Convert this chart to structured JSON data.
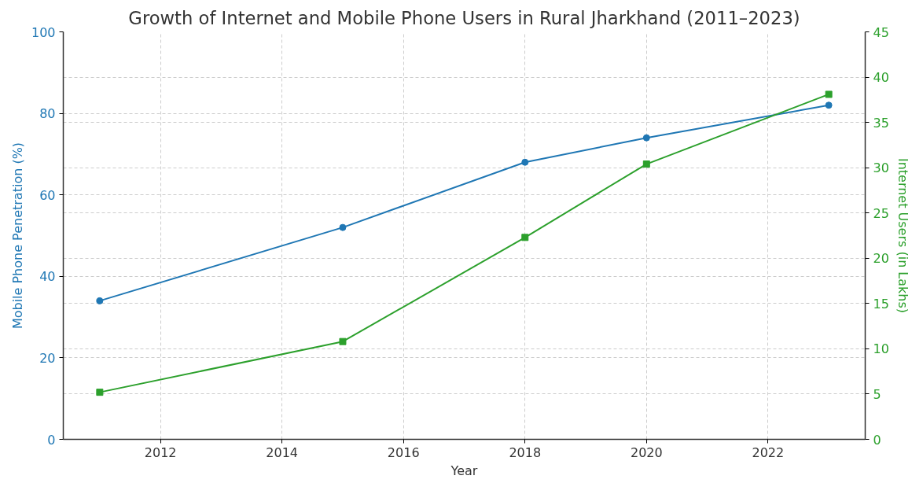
{
  "chart_data": {
    "type": "line",
    "title": "Growth of Internet and Mobile Phone Users in Rural Jharkhand (2011–2023)",
    "xlabel": "Year",
    "ylabel": "Mobile Phone Penetration (%)",
    "y2label": "Internet Users (in Lakhs)",
    "x": [
      2011,
      2015,
      2018,
      2020,
      2023
    ],
    "series": [
      {
        "color": "#1f77b4",
        "values": [
          34,
          52,
          68,
          74,
          82
        ],
        "marker": "circle"
      },
      {
        "color": "#2ca02c",
        "values": [
          5.2,
          10.8,
          22.3,
          30.4,
          38.1
        ],
        "marker": "square",
        "axis": "y2"
      }
    ],
    "xlim": [
      2010.4,
      2023.6
    ],
    "xticks": [
      2012,
      2014,
      2016,
      2018,
      2020,
      2022
    ],
    "ylim": [
      0,
      100
    ],
    "yticks": [
      0,
      20,
      40,
      60,
      80,
      100
    ],
    "y2lim": [
      0,
      45
    ],
    "y2ticks": [
      0,
      5,
      10,
      15,
      20,
      25,
      30,
      35,
      40,
      45
    ],
    "grid": true,
    "line_style": "solid"
  }
}
